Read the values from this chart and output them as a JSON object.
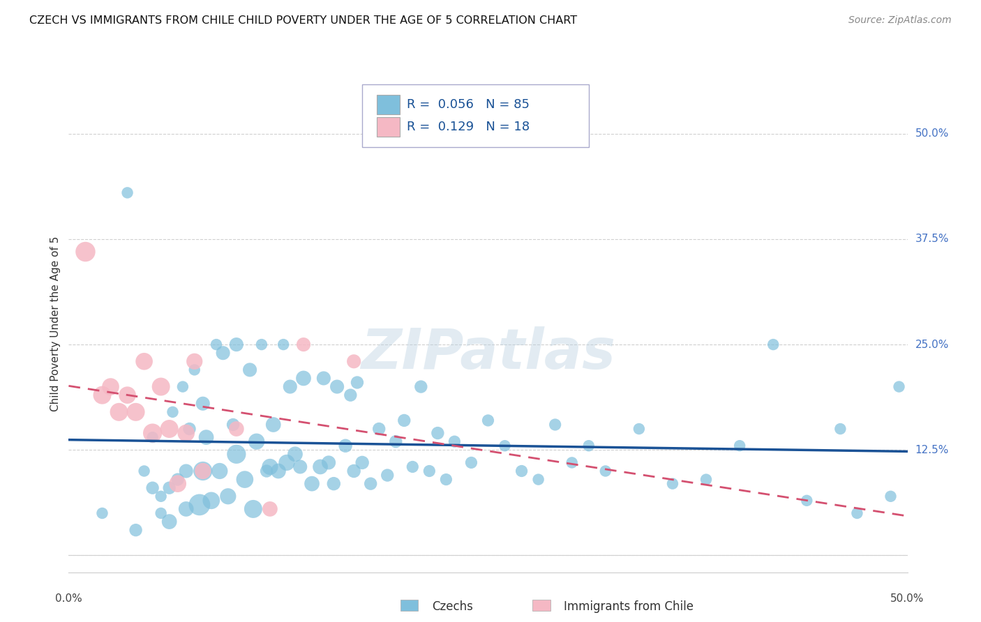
{
  "title": "CZECH VS IMMIGRANTS FROM CHILE CHILD POVERTY UNDER THE AGE OF 5 CORRELATION CHART",
  "source": "Source: ZipAtlas.com",
  "ylabel": "Child Poverty Under the Age of 5",
  "xlim": [
    0.0,
    0.5
  ],
  "ylim": [
    -0.02,
    0.57
  ],
  "ytick_values": [
    0.0,
    0.125,
    0.25,
    0.375,
    0.5
  ],
  "ytick_labels": [
    "0.0%",
    "12.5%",
    "25.0%",
    "37.5%",
    "50.0%"
  ],
  "xtick_values": [
    0.0,
    0.5
  ],
  "xtick_labels": [
    "0.0%",
    "50.0%"
  ],
  "background_color": "#ffffff",
  "grid_color": "#d0d0d0",
  "czechs_color": "#7fbfdc",
  "czechs_line_color": "#1a5296",
  "immigrants_color": "#f5b8c4",
  "immigrants_line_color": "#d45070",
  "R_czechs": 0.056,
  "N_czechs": 85,
  "R_immigrants": 0.129,
  "N_immigrants": 18,
  "legend_label_czechs": "Czechs",
  "legend_label_immigrants": "Immigrants from Chile",
  "watermark": "ZIPatlas",
  "czechs_x": [
    0.02,
    0.035,
    0.04,
    0.045,
    0.05,
    0.05,
    0.055,
    0.055,
    0.06,
    0.06,
    0.062,
    0.065,
    0.068,
    0.07,
    0.07,
    0.072,
    0.075,
    0.078,
    0.08,
    0.08,
    0.082,
    0.085,
    0.088,
    0.09,
    0.092,
    0.095,
    0.098,
    0.1,
    0.1,
    0.105,
    0.108,
    0.11,
    0.112,
    0.115,
    0.118,
    0.12,
    0.122,
    0.125,
    0.128,
    0.13,
    0.132,
    0.135,
    0.138,
    0.14,
    0.145,
    0.15,
    0.152,
    0.155,
    0.158,
    0.16,
    0.165,
    0.168,
    0.17,
    0.172,
    0.175,
    0.18,
    0.185,
    0.19,
    0.195,
    0.2,
    0.205,
    0.21,
    0.215,
    0.22,
    0.225,
    0.23,
    0.24,
    0.25,
    0.26,
    0.27,
    0.28,
    0.29,
    0.3,
    0.31,
    0.32,
    0.34,
    0.36,
    0.38,
    0.4,
    0.42,
    0.44,
    0.46,
    0.47,
    0.49,
    0.495
  ],
  "czechs_y": [
    0.05,
    0.43,
    0.03,
    0.1,
    0.08,
    0.14,
    0.05,
    0.07,
    0.04,
    0.08,
    0.17,
    0.09,
    0.2,
    0.055,
    0.1,
    0.15,
    0.22,
    0.06,
    0.1,
    0.18,
    0.14,
    0.065,
    0.25,
    0.1,
    0.24,
    0.07,
    0.155,
    0.12,
    0.25,
    0.09,
    0.22,
    0.055,
    0.135,
    0.25,
    0.1,
    0.105,
    0.155,
    0.1,
    0.25,
    0.11,
    0.2,
    0.12,
    0.105,
    0.21,
    0.085,
    0.105,
    0.21,
    0.11,
    0.085,
    0.2,
    0.13,
    0.19,
    0.1,
    0.205,
    0.11,
    0.085,
    0.15,
    0.095,
    0.135,
    0.16,
    0.105,
    0.2,
    0.1,
    0.145,
    0.09,
    0.135,
    0.11,
    0.16,
    0.13,
    0.1,
    0.09,
    0.155,
    0.11,
    0.13,
    0.1,
    0.15,
    0.085,
    0.09,
    0.13,
    0.25,
    0.065,
    0.15,
    0.05,
    0.07,
    0.2
  ],
  "czechs_size": [
    20,
    20,
    25,
    20,
    25,
    20,
    20,
    20,
    35,
    25,
    20,
    25,
    20,
    35,
    30,
    25,
    20,
    70,
    55,
    30,
    35,
    45,
    20,
    40,
    30,
    40,
    25,
    55,
    30,
    45,
    30,
    50,
    40,
    20,
    25,
    40,
    35,
    35,
    20,
    40,
    30,
    35,
    30,
    35,
    35,
    35,
    30,
    30,
    28,
    30,
    28,
    25,
    28,
    25,
    28,
    25,
    25,
    25,
    25,
    25,
    22,
    25,
    22,
    25,
    22,
    22,
    22,
    22,
    20,
    22,
    20,
    22,
    20,
    20,
    20,
    20,
    20,
    20,
    20,
    20,
    20,
    20,
    20,
    20,
    20
  ],
  "immigrants_x": [
    0.01,
    0.02,
    0.025,
    0.03,
    0.035,
    0.04,
    0.045,
    0.05,
    0.055,
    0.06,
    0.065,
    0.07,
    0.075,
    0.08,
    0.1,
    0.12,
    0.14,
    0.17
  ],
  "immigrants_y": [
    0.36,
    0.19,
    0.2,
    0.17,
    0.19,
    0.17,
    0.23,
    0.145,
    0.2,
    0.15,
    0.085,
    0.145,
    0.23,
    0.1,
    0.15,
    0.055,
    0.25,
    0.23
  ],
  "immigrants_size": [
    60,
    50,
    45,
    50,
    45,
    50,
    45,
    55,
    50,
    50,
    45,
    45,
    40,
    40,
    35,
    35,
    30,
    30
  ]
}
